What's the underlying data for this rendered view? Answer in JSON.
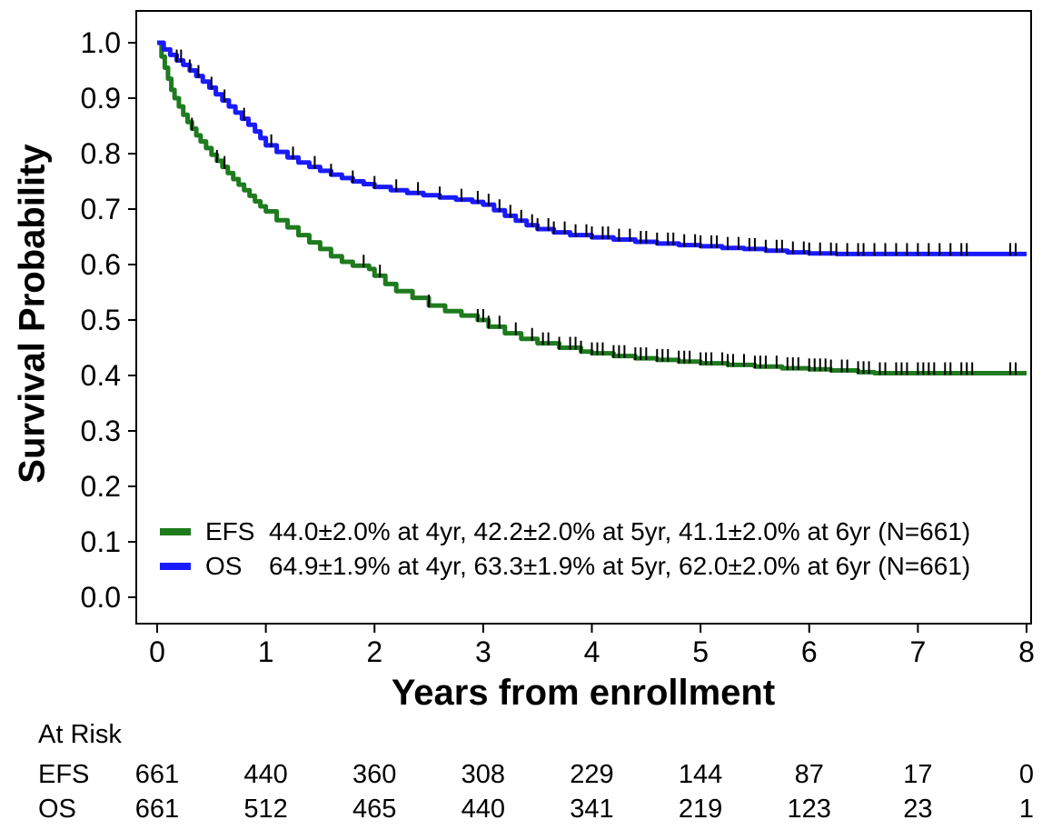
{
  "chart_data": {
    "type": "line",
    "subtype": "kaplan-meier-step",
    "title": "",
    "xlabel": "Years from enrollment",
    "ylabel": "Survival Probability",
    "xlim": [
      0,
      8
    ],
    "ylim": [
      0.0,
      1.0
    ],
    "x_ticks": [
      0,
      1,
      2,
      3,
      4,
      5,
      6,
      7,
      8
    ],
    "y_ticks": [
      0.0,
      0.1,
      0.2,
      0.3,
      0.4,
      0.5,
      0.6,
      0.7,
      0.8,
      0.9,
      1.0
    ],
    "grid": false,
    "frame_color": "#000000",
    "censor_mark_color": "#000000",
    "legend_position": "inside-bottom-left",
    "series": [
      {
        "name": "EFS",
        "color": "#1e7b1e",
        "legend_text": "44.0±2.0% at 4yr, 42.2±2.0% at 5yr, 41.1±2.0% at 6yr (N=661)",
        "points": [
          [
            0,
            1.0
          ],
          [
            0.04,
            0.975
          ],
          [
            0.07,
            0.955
          ],
          [
            0.1,
            0.935
          ],
          [
            0.13,
            0.915
          ],
          [
            0.16,
            0.9
          ],
          [
            0.2,
            0.885
          ],
          [
            0.24,
            0.87
          ],
          [
            0.28,
            0.857
          ],
          [
            0.32,
            0.845
          ],
          [
            0.36,
            0.833
          ],
          [
            0.4,
            0.822
          ],
          [
            0.45,
            0.81
          ],
          [
            0.5,
            0.798
          ],
          [
            0.55,
            0.787
          ],
          [
            0.6,
            0.776
          ],
          [
            0.65,
            0.765
          ],
          [
            0.7,
            0.754
          ],
          [
            0.75,
            0.744
          ],
          [
            0.8,
            0.734
          ],
          [
            0.85,
            0.724
          ],
          [
            0.9,
            0.714
          ],
          [
            0.95,
            0.705
          ],
          [
            1.0,
            0.696
          ],
          [
            1.1,
            0.68
          ],
          [
            1.2,
            0.667
          ],
          [
            1.3,
            0.653
          ],
          [
            1.4,
            0.64
          ],
          [
            1.5,
            0.628
          ],
          [
            1.6,
            0.615
          ],
          [
            1.7,
            0.605
          ],
          [
            1.8,
            0.598
          ],
          [
            1.95,
            0.592
          ],
          [
            2.0,
            0.58
          ],
          [
            2.1,
            0.565
          ],
          [
            2.2,
            0.552
          ],
          [
            2.35,
            0.54
          ],
          [
            2.5,
            0.526
          ],
          [
            2.65,
            0.516
          ],
          [
            2.8,
            0.508
          ],
          [
            2.95,
            0.5
          ],
          [
            3.05,
            0.488
          ],
          [
            3.2,
            0.476
          ],
          [
            3.35,
            0.466
          ],
          [
            3.5,
            0.458
          ],
          [
            3.7,
            0.45
          ],
          [
            3.9,
            0.443
          ],
          [
            4.0,
            0.44
          ],
          [
            4.2,
            0.435
          ],
          [
            4.4,
            0.431
          ],
          [
            4.6,
            0.428
          ],
          [
            4.8,
            0.425
          ],
          [
            5.0,
            0.422
          ],
          [
            5.25,
            0.419
          ],
          [
            5.5,
            0.416
          ],
          [
            5.75,
            0.413
          ],
          [
            6.0,
            0.411
          ],
          [
            6.2,
            0.409
          ],
          [
            6.45,
            0.406
          ],
          [
            6.6,
            0.404
          ],
          [
            8.0,
            0.404
          ]
        ],
        "censor_times": [
          0.32,
          0.55,
          0.62,
          1.9,
          2.05,
          2.5,
          2.95,
          3.0,
          3.05,
          3.15,
          3.3,
          3.45,
          3.55,
          3.6,
          3.7,
          3.8,
          3.85,
          3.9,
          4.0,
          4.05,
          4.1,
          4.2,
          4.25,
          4.3,
          4.4,
          4.45,
          4.5,
          4.6,
          4.65,
          4.7,
          4.8,
          4.85,
          4.9,
          5.0,
          5.05,
          5.1,
          5.2,
          5.25,
          5.3,
          5.4,
          5.5,
          5.55,
          5.6,
          5.7,
          5.8,
          5.85,
          5.9,
          6.0,
          6.05,
          6.1,
          6.15,
          6.2,
          6.3,
          6.35,
          6.45,
          6.5,
          6.55,
          6.65,
          6.7,
          6.8,
          6.85,
          6.9,
          7.0,
          7.05,
          7.1,
          7.15,
          7.25,
          7.3,
          7.4,
          7.45,
          7.5,
          7.85,
          7.9
        ]
      },
      {
        "name": "OS",
        "color": "#1a1aff",
        "legend_text": "64.9±1.9% at 4yr, 63.3±1.9% at 5yr, 62.0±2.0% at 6yr (N=661)",
        "points": [
          [
            0,
            1.0
          ],
          [
            0.06,
            0.988
          ],
          [
            0.12,
            0.978
          ],
          [
            0.18,
            0.968
          ],
          [
            0.24,
            0.96
          ],
          [
            0.3,
            0.95
          ],
          [
            0.36,
            0.94
          ],
          [
            0.42,
            0.93
          ],
          [
            0.48,
            0.919
          ],
          [
            0.54,
            0.907
          ],
          [
            0.6,
            0.896
          ],
          [
            0.66,
            0.885
          ],
          [
            0.72,
            0.874
          ],
          [
            0.78,
            0.863
          ],
          [
            0.84,
            0.852
          ],
          [
            0.9,
            0.84
          ],
          [
            0.95,
            0.828
          ],
          [
            1.0,
            0.815
          ],
          [
            1.1,
            0.803
          ],
          [
            1.2,
            0.793
          ],
          [
            1.3,
            0.784
          ],
          [
            1.4,
            0.776
          ],
          [
            1.5,
            0.769
          ],
          [
            1.6,
            0.762
          ],
          [
            1.7,
            0.756
          ],
          [
            1.8,
            0.75
          ],
          [
            1.9,
            0.745
          ],
          [
            2.0,
            0.74
          ],
          [
            2.15,
            0.734
          ],
          [
            2.3,
            0.729
          ],
          [
            2.45,
            0.725
          ],
          [
            2.6,
            0.721
          ],
          [
            2.75,
            0.717
          ],
          [
            2.9,
            0.713
          ],
          [
            3.0,
            0.708
          ],
          [
            3.1,
            0.698
          ],
          [
            3.2,
            0.688
          ],
          [
            3.3,
            0.679
          ],
          [
            3.4,
            0.671
          ],
          [
            3.5,
            0.664
          ],
          [
            3.65,
            0.658
          ],
          [
            3.8,
            0.653
          ],
          [
            4.0,
            0.649
          ],
          [
            4.2,
            0.645
          ],
          [
            4.4,
            0.641
          ],
          [
            4.6,
            0.638
          ],
          [
            4.8,
            0.635
          ],
          [
            5.0,
            0.633
          ],
          [
            5.2,
            0.63
          ],
          [
            5.4,
            0.628
          ],
          [
            5.6,
            0.625
          ],
          [
            5.8,
            0.622
          ],
          [
            6.0,
            0.62
          ],
          [
            6.25,
            0.619
          ],
          [
            8.0,
            0.619
          ]
        ],
        "censor_times": [
          0.18,
          0.22,
          0.3,
          0.38,
          0.5,
          0.62,
          0.8,
          1.05,
          1.25,
          1.45,
          1.6,
          1.8,
          2.0,
          2.2,
          2.4,
          2.6,
          2.8,
          2.95,
          3.05,
          3.15,
          3.25,
          3.35,
          3.45,
          3.5,
          3.6,
          3.65,
          3.75,
          3.85,
          3.95,
          4.0,
          4.1,
          4.15,
          4.25,
          4.35,
          4.45,
          4.5,
          4.6,
          4.7,
          4.75,
          4.85,
          4.95,
          5.0,
          5.1,
          5.15,
          5.25,
          5.35,
          5.45,
          5.5,
          5.6,
          5.7,
          5.75,
          5.85,
          5.95,
          6.0,
          6.1,
          6.2,
          6.25,
          6.35,
          6.45,
          6.5,
          6.6,
          6.7,
          6.8,
          6.9,
          7.0,
          7.1,
          7.2,
          7.3,
          7.4,
          7.45,
          7.85,
          7.9
        ]
      }
    ],
    "at_risk": {
      "title": "At Risk",
      "time_points": [
        0,
        1,
        2,
        3,
        4,
        5,
        6,
        7,
        8
      ],
      "rows": [
        {
          "label": "EFS",
          "counts": [
            661,
            440,
            360,
            308,
            229,
            144,
            87,
            17,
            0
          ]
        },
        {
          "label": "OS",
          "counts": [
            661,
            512,
            465,
            440,
            341,
            219,
            123,
            23,
            1
          ]
        }
      ]
    }
  }
}
